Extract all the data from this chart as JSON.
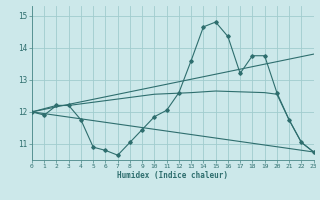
{
  "xlabel": "Humidex (Indice chaleur)",
  "bg_color": "#cce8ea",
  "grid_color": "#a0ccce",
  "line_color": "#2e6e6e",
  "xmin": 0,
  "xmax": 23,
  "ymin": 10.5,
  "ymax": 15.3,
  "yticks": [
    11,
    12,
    13,
    14,
    15
  ],
  "xticks": [
    0,
    1,
    2,
    3,
    4,
    5,
    6,
    7,
    8,
    9,
    10,
    11,
    12,
    13,
    14,
    15,
    16,
    17,
    18,
    19,
    20,
    21,
    22,
    23
  ],
  "line1_x": [
    0,
    1,
    2,
    3,
    4,
    5,
    6,
    7,
    8,
    9,
    10,
    11,
    12,
    13,
    14,
    15,
    16,
    17,
    18,
    19,
    20,
    21,
    22,
    23
  ],
  "line1_y": [
    12.0,
    11.9,
    12.2,
    12.2,
    11.75,
    10.9,
    10.8,
    10.65,
    11.05,
    11.45,
    11.85,
    12.05,
    12.6,
    13.6,
    14.65,
    14.8,
    14.35,
    13.2,
    13.75,
    13.75,
    12.6,
    11.75,
    11.05,
    10.75
  ],
  "line2_x": [
    0,
    23
  ],
  "line2_y": [
    12.0,
    13.8
  ],
  "line3_x": [
    0,
    23
  ],
  "line3_y": [
    12.0,
    10.75
  ],
  "line4_x": [
    0,
    2,
    3,
    10,
    13,
    15,
    19,
    20,
    21,
    22,
    23
  ],
  "line4_y": [
    12.0,
    12.2,
    12.2,
    12.55,
    12.6,
    12.65,
    12.6,
    12.55,
    11.75,
    11.05,
    10.75
  ]
}
